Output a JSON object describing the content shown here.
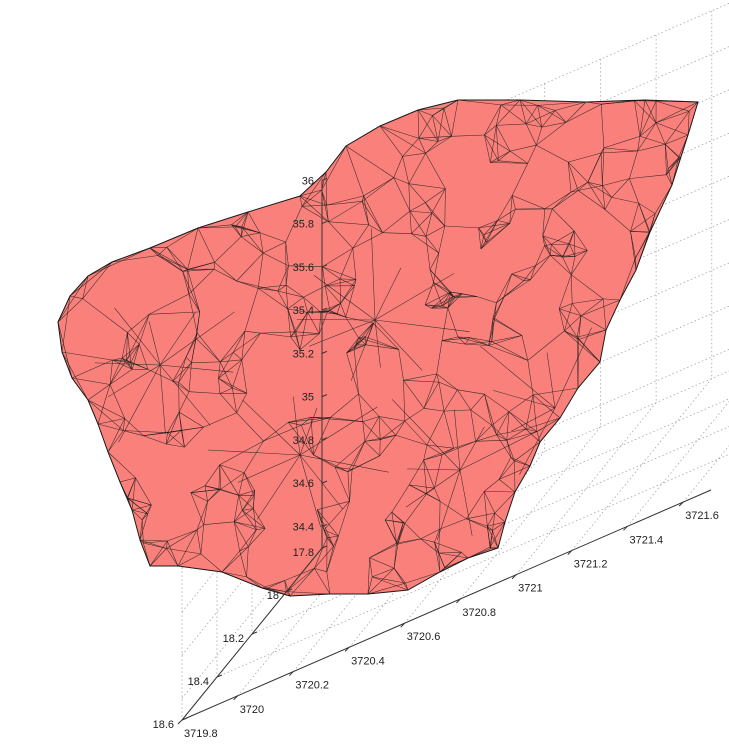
{
  "chart_data": {
    "type": "surface-3d",
    "title": "",
    "xlabel": "",
    "ylabel": "",
    "zlabel": "",
    "grid": true,
    "x_ticks": [
      "3719.8",
      "3720",
      "3720.2",
      "3720.4",
      "3720.6",
      "3720.8",
      "3721",
      "3721.2",
      "3721.4",
      "3721.6"
    ],
    "y_ticks": [
      "17.8",
      "18",
      "18.2",
      "18.4",
      "18.6"
    ],
    "z_ticks": [
      "34.4",
      "34.6",
      "34.8",
      "35",
      "35.2",
      "35.4",
      "35.6",
      "35.8",
      "36"
    ],
    "xlim": [
      3719.8,
      3721.7
    ],
    "ylim": [
      17.8,
      18.6
    ],
    "zlim": [
      34.3,
      36
    ],
    "surface": {
      "face_color": "#fa7a74",
      "edge_color": "#1a1a1a",
      "face_opacity": 0.95
    }
  }
}
